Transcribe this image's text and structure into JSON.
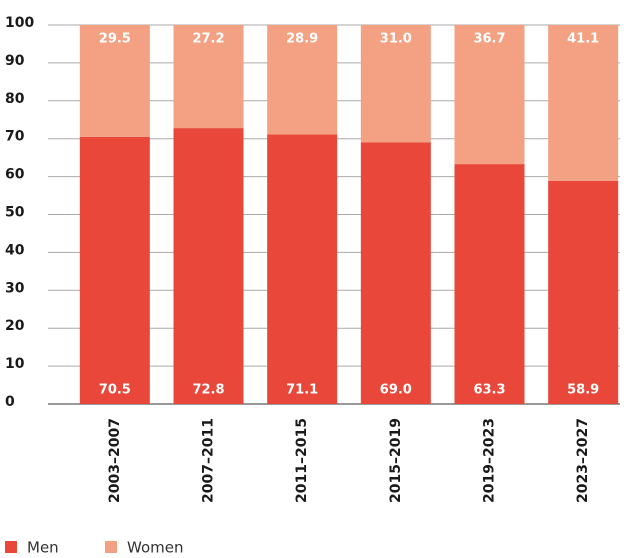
{
  "chart_data": {
    "type": "stacked_bar",
    "categories": [
      "2003–2007",
      "2007–2011",
      "2011–2015",
      "2015–2019",
      "2019–2023",
      "2023–2027"
    ],
    "series": [
      {
        "name": "Men",
        "color": "#e8473a",
        "values": [
          70.5,
          72.8,
          71.1,
          69.0,
          63.3,
          58.9
        ],
        "value_labels": [
          "70.5",
          "72.8",
          "71.1",
          "69.0",
          "63.3",
          "58.9"
        ]
      },
      {
        "name": "Women",
        "color": "#f4a083",
        "values": [
          29.5,
          27.2,
          28.9,
          31.0,
          36.7,
          41.1
        ],
        "value_labels": [
          "29.5",
          "27.2",
          "28.9",
          "31.0",
          "36.7",
          "41.1"
        ]
      }
    ],
    "ylim": [
      0,
      100
    ],
    "yticks": [
      0,
      10,
      20,
      30,
      40,
      50,
      60,
      70,
      80,
      90,
      100
    ],
    "grid": true,
    "legend": "bottom-left"
  }
}
